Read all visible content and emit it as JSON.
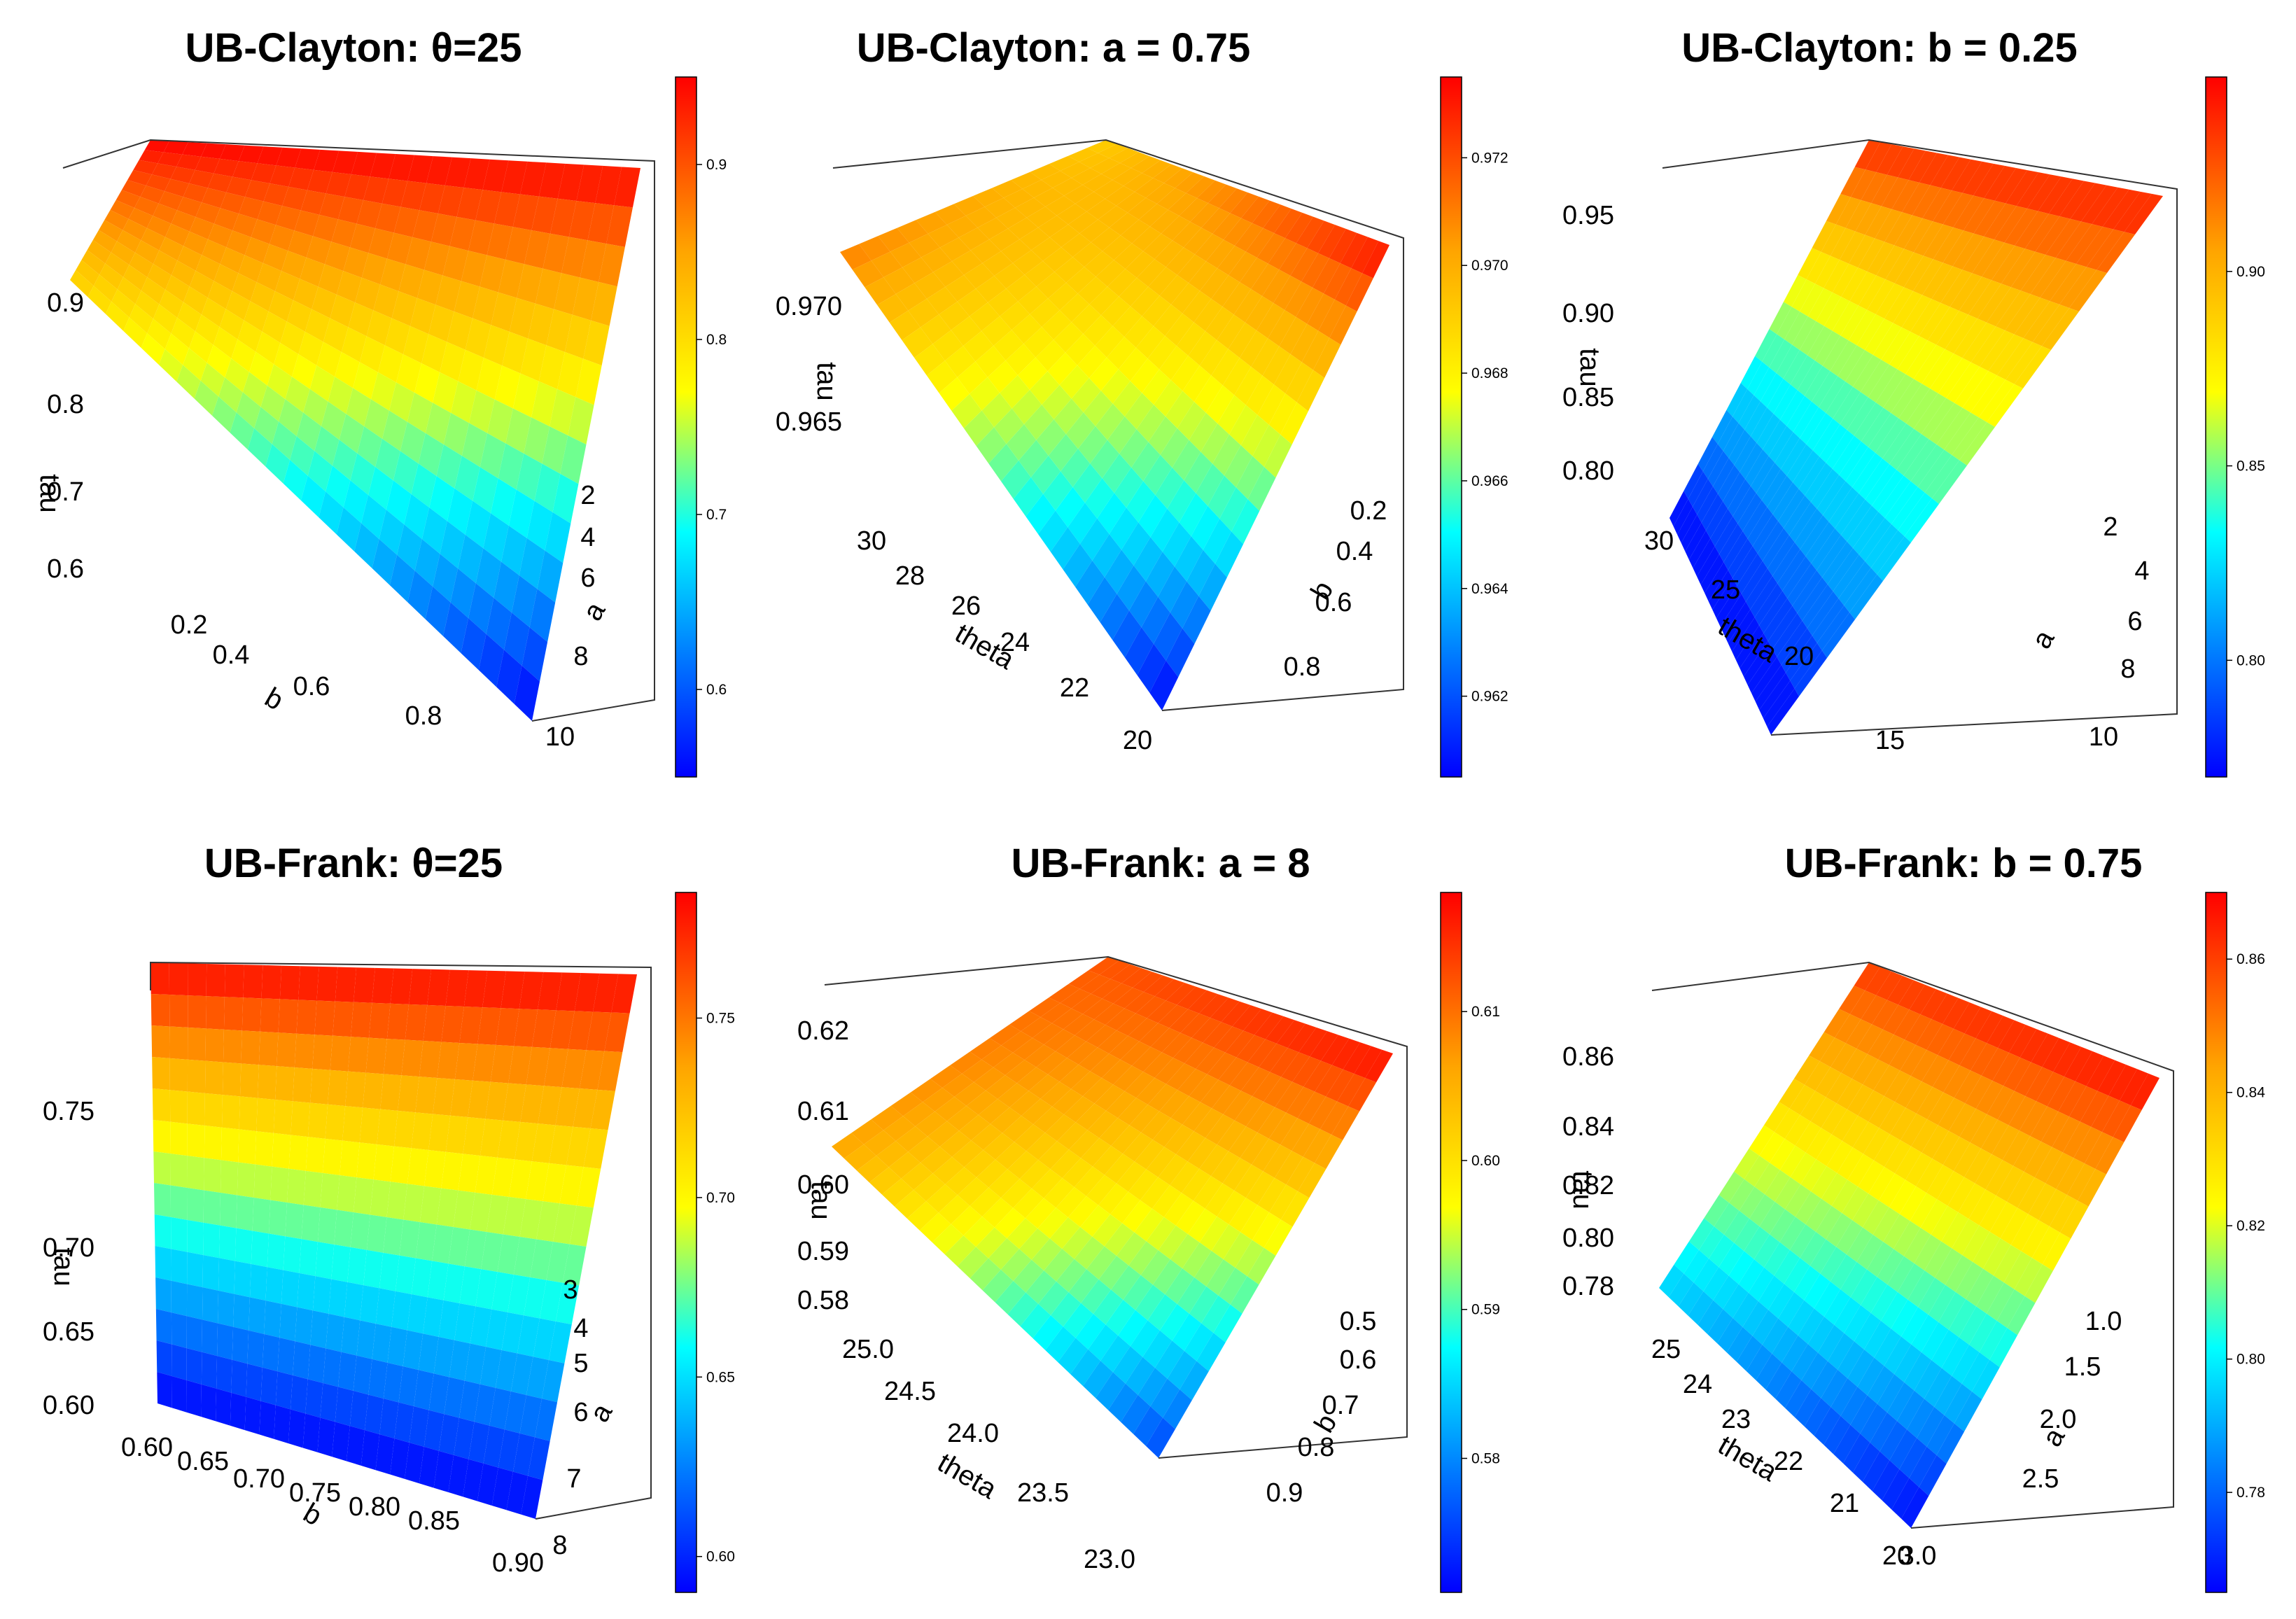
{
  "chart_data": [
    {
      "type": "surface3d",
      "title": "UB-Clayton: θ=25",
      "zlabel": "tau",
      "xlabel": "b",
      "ylabel": "a",
      "z_ticks": [
        "0.9",
        "0.8",
        "0.7",
        "0.6"
      ],
      "x_ticks": [
        "0.2",
        "0.4",
        "0.6",
        "0.8"
      ],
      "y_ticks": [
        "2",
        "4",
        "6",
        "8",
        "10"
      ],
      "z_range": [
        0.55,
        0.95
      ],
      "colorbar_ticks": [
        "0.9",
        "0.8",
        "0.7",
        "0.6"
      ],
      "corners": {
        "back_left": 0.81,
        "back_right": 0.95,
        "front_right": 0.55,
        "front_left": 0.95
      }
    },
    {
      "type": "surface3d",
      "title": "UB-Clayton: a = 0.75",
      "zlabel": "tau",
      "xlabel": "theta",
      "ylabel": "b",
      "z_ticks": [
        "0.970",
        "0.965"
      ],
      "x_ticks": [
        "30",
        "28",
        "26",
        "24",
        "22",
        "20"
      ],
      "y_ticks": [
        "0.2",
        "0.4",
        "0.6",
        "0.8"
      ],
      "z_range": [
        0.9605,
        0.9735
      ],
      "colorbar_ticks": [
        "0.972",
        "0.970",
        "0.968",
        "0.966",
        "0.964",
        "0.962"
      ],
      "corners": {
        "back_left": 0.971,
        "back_right": 0.9735,
        "front_right": 0.9605,
        "front_left": 0.969
      }
    },
    {
      "type": "surface3d",
      "title": "UB-Clayton: b = 0.25",
      "zlabel": "tau",
      "xlabel": "theta",
      "ylabel": "a",
      "z_ticks": [
        "0.95",
        "0.90",
        "0.85",
        "0.80"
      ],
      "x_ticks": [
        "30",
        "25",
        "20",
        "15"
      ],
      "y_ticks": [
        "2",
        "4",
        "6",
        "8",
        "10"
      ],
      "z_range": [
        0.77,
        0.95
      ],
      "colorbar_ticks": [
        "0.90",
        "0.85",
        "0.80"
      ],
      "corners": {
        "back_left": 0.77,
        "back_right": 0.945,
        "front_right": 0.77,
        "front_left": 0.94
      }
    },
    {
      "type": "surface3d",
      "title": "UB-Frank: θ=25",
      "zlabel": "tau",
      "xlabel": "b",
      "ylabel": "a",
      "z_ticks": [
        "0.75",
        "0.70",
        "0.65",
        "0.60"
      ],
      "x_ticks": [
        "0.60",
        "0.65",
        "0.70",
        "0.75",
        "0.80",
        "0.85",
        "0.90"
      ],
      "y_ticks": [
        "3",
        "4",
        "5",
        "6",
        "7",
        "8"
      ],
      "z_range": [
        0.59,
        0.785
      ],
      "colorbar_ticks": [
        "0.75",
        "0.70",
        "0.65",
        "0.60"
      ],
      "corners": {
        "back_left": 0.59,
        "back_right": 0.785,
        "front_right": 0.59,
        "front_left": 0.785
      }
    },
    {
      "type": "surface3d",
      "title": "UB-Frank: a = 8",
      "zlabel": "tau",
      "xlabel": "theta",
      "ylabel": "b",
      "z_ticks": [
        "0.62",
        "0.61",
        "0.60",
        "0.59",
        "0.58"
      ],
      "x_ticks": [
        "25.0",
        "24.5",
        "24.0",
        "23.5",
        "23.0"
      ],
      "y_ticks": [
        "0.5",
        "0.6",
        "0.7",
        "0.8",
        "0.9"
      ],
      "z_range": [
        0.571,
        0.618
      ],
      "colorbar_ticks": [
        "0.61",
        "0.60",
        "0.59",
        "0.58"
      ],
      "corners": {
        "back_left": 0.606,
        "back_right": 0.618,
        "front_right": 0.575,
        "front_left": 0.612
      }
    },
    {
      "type": "surface3d",
      "title": "UB-Frank: b = 0.75",
      "zlabel": "tau",
      "xlabel": "theta",
      "ylabel": "a",
      "z_ticks": [
        "0.86",
        "0.84",
        "0.82",
        "0.80",
        "0.78"
      ],
      "x_ticks": [
        "25",
        "24",
        "23",
        "22",
        "21",
        "20"
      ],
      "y_ticks": [
        "1.0",
        "1.5",
        "2.0",
        "2.5",
        "3.0"
      ],
      "z_range": [
        0.765,
        0.87
      ],
      "colorbar_ticks": [
        "0.86",
        "0.84",
        "0.82",
        "0.80",
        "0.78"
      ],
      "corners": {
        "back_left": 0.795,
        "back_right": 0.87,
        "front_right": 0.765,
        "front_left": 0.862
      }
    }
  ]
}
